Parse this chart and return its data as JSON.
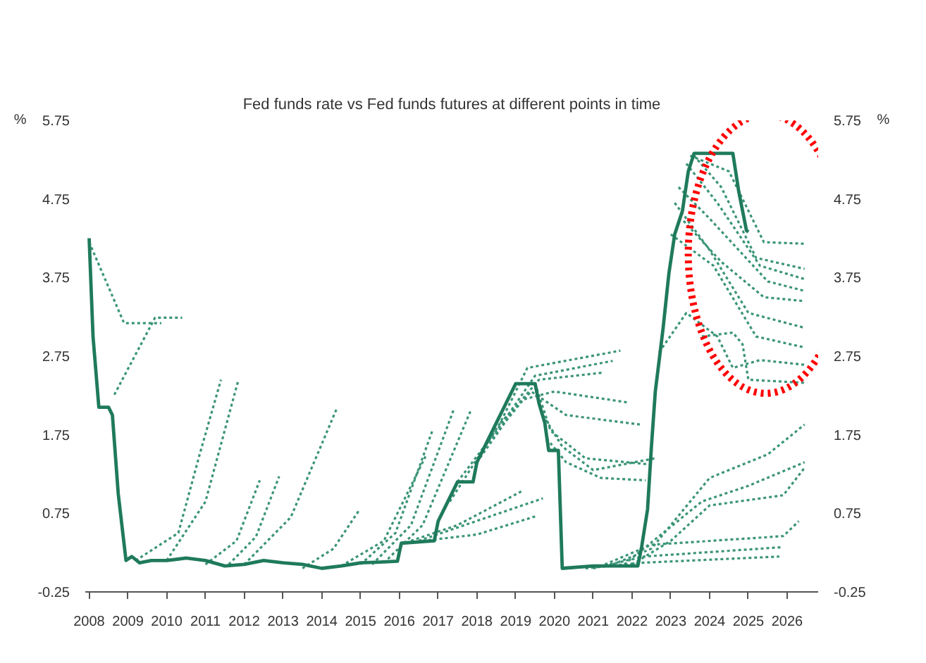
{
  "chart_data": {
    "type": "line",
    "title": "Fed funds rate vs Fed funds futures at different points in time",
    "ylabel": "%",
    "y2label": "%",
    "xlim": [
      2007.9,
      2026.8
    ],
    "xticks": [
      2008,
      2009,
      2010,
      2011,
      2012,
      2013,
      2014,
      2015,
      2016,
      2017,
      2018,
      2019,
      2020,
      2021,
      2022,
      2023,
      2024,
      2025,
      2026
    ],
    "ylim": [
      -0.25,
      5.75
    ],
    "yticks": [
      -0.25,
      0.75,
      1.75,
      2.75,
      3.75,
      4.75,
      5.75
    ],
    "y2lim": [
      -0.25,
      5.75
    ],
    "y2ticks": [
      -0.25,
      0.75,
      1.75,
      2.75,
      3.75,
      4.75,
      5.75
    ],
    "grid": false,
    "marker": "none",
    "series": [
      {
        "color": "#1f7a5c",
        "line_style": "solid",
        "x": [
          2008.0,
          2008.1,
          2008.25,
          2008.5,
          2008.6,
          2008.75,
          2008.95,
          2009.1,
          2009.3,
          2009.6,
          2010.0,
          2010.5,
          2011.0,
          2011.5,
          2012.0,
          2012.5,
          2013.0,
          2013.5,
          2014.0,
          2014.5,
          2015.0,
          2015.5,
          2015.95,
          2016.05,
          2016.9,
          2017.0,
          2017.25,
          2017.5,
          2017.9,
          2018.0,
          2018.25,
          2018.5,
          2018.75,
          2019.0,
          2019.5,
          2019.6,
          2019.75,
          2019.85,
          2020.1,
          2020.2,
          2021.0,
          2022.15,
          2022.25,
          2022.4,
          2022.5,
          2022.6,
          2022.8,
          2022.95,
          2023.1,
          2023.3,
          2023.45,
          2023.6,
          2024.6,
          2024.75,
          2024.85,
          2024.95,
          2025.0
        ],
        "values": [
          4.25,
          3.0,
          2.1,
          2.1,
          2.0,
          1.0,
          0.15,
          0.2,
          0.12,
          0.15,
          0.15,
          0.18,
          0.15,
          0.08,
          0.1,
          0.15,
          0.12,
          0.1,
          0.05,
          0.08,
          0.12,
          0.13,
          0.14,
          0.37,
          0.4,
          0.65,
          0.9,
          1.15,
          1.15,
          1.4,
          1.65,
          1.9,
          2.15,
          2.4,
          2.4,
          2.15,
          1.9,
          1.55,
          1.55,
          0.05,
          0.08,
          0.08,
          0.33,
          0.8,
          1.6,
          2.3,
          3.1,
          3.8,
          4.3,
          4.6,
          5.1,
          5.33,
          5.33,
          4.85,
          4.6,
          4.35,
          4.33
        ]
      },
      {
        "color": "#3a9478",
        "line_style": "dotted",
        "x": [
          2008.0,
          2008.9,
          2009.86
        ],
        "values": [
          4.2,
          3.17,
          3.17
        ]
      },
      {
        "color": "#3a9478",
        "line_style": "dotted",
        "x": [
          2008.65,
          2009.7,
          2010.4
        ],
        "values": [
          2.26,
          3.24,
          3.24
        ]
      },
      {
        "color": "#3a9478",
        "line_style": "dotted",
        "x": [
          2009.2,
          2010.3,
          2010.85,
          2011.4
        ],
        "values": [
          0.15,
          0.5,
          1.5,
          2.45
        ]
      },
      {
        "color": "#3a9478",
        "line_style": "dotted",
        "x": [
          2010.0,
          2011.0,
          2011.85
        ],
        "values": [
          0.15,
          0.9,
          2.45
        ]
      },
      {
        "color": "#3a9478",
        "line_style": "dotted",
        "x": [
          2011.0,
          2011.8,
          2012.4
        ],
        "values": [
          0.1,
          0.4,
          1.17
        ]
      },
      {
        "color": "#3a9478",
        "line_style": "dotted",
        "x": [
          2011.6,
          2012.3,
          2012.9
        ],
        "values": [
          0.1,
          0.45,
          1.22
        ]
      },
      {
        "color": "#3a9478",
        "line_style": "dotted",
        "x": [
          2012.0,
          2013.2,
          2014.4
        ],
        "values": [
          0.1,
          0.7,
          2.1
        ]
      },
      {
        "color": "#3a9478",
        "line_style": "dotted",
        "x": [
          2013.5,
          2014.3,
          2014.95
        ],
        "values": [
          0.05,
          0.3,
          0.78
        ]
      },
      {
        "color": "#3a9478",
        "line_style": "dotted",
        "x": [
          2014.5,
          2015.6,
          2016.7
        ],
        "values": [
          0.08,
          0.4,
          1.5
        ]
      },
      {
        "color": "#3a9478",
        "line_style": "dotted",
        "x": [
          2015.0,
          2015.9,
          2016.85
        ],
        "values": [
          0.1,
          0.5,
          1.8
        ]
      },
      {
        "color": "#3a9478",
        "line_style": "dotted",
        "x": [
          2015.3,
          2016.3,
          2017.4
        ],
        "values": [
          0.1,
          0.6,
          2.07
        ]
      },
      {
        "color": "#3a9478",
        "line_style": "dotted",
        "x": [
          2015.6,
          2016.6,
          2017.85
        ],
        "values": [
          0.12,
          0.6,
          2.07
        ]
      },
      {
        "color": "#3a9478",
        "line_style": "dotted",
        "x": [
          2016.3,
          2017.5,
          2019.15
        ],
        "values": [
          0.4,
          0.6,
          1.03
        ]
      },
      {
        "color": "#3a9478",
        "line_style": "dotted",
        "x": [
          2016.5,
          2017.8,
          2019.7
        ],
        "values": [
          0.4,
          0.62,
          0.94
        ]
      },
      {
        "color": "#3a9478",
        "line_style": "dotted",
        "x": [
          2016.6,
          2018.0,
          2019.5
        ],
        "values": [
          0.4,
          0.48,
          0.71
        ]
      },
      {
        "color": "#3a9478",
        "line_style": "dotted",
        "x": [
          2017.3,
          2018.6,
          2019.3,
          2021.7
        ],
        "values": [
          0.9,
          1.9,
          2.6,
          2.82
        ]
      },
      {
        "color": "#3a9478",
        "line_style": "dotted",
        "x": [
          2017.5,
          2018.8,
          2019.5,
          2021.5
        ],
        "values": [
          1.15,
          2.0,
          2.5,
          2.69
        ]
      },
      {
        "color": "#3a9478",
        "line_style": "dotted",
        "x": [
          2018.0,
          2019.0,
          2019.6,
          2021.25
        ],
        "values": [
          1.4,
          2.1,
          2.45,
          2.54
        ]
      },
      {
        "color": "#3a9478",
        "line_style": "dotted",
        "x": [
          2018.3,
          2019.2,
          2020.0,
          2021.9
        ],
        "values": [
          1.65,
          2.2,
          2.3,
          2.16
        ]
      },
      {
        "color": "#3a9478",
        "line_style": "dotted",
        "x": [
          2018.6,
          2019.4,
          2020.3,
          2022.2
        ],
        "values": [
          1.9,
          2.3,
          2.0,
          1.88
        ]
      },
      {
        "color": "#3a9478",
        "line_style": "dotted",
        "x": [
          2019.5,
          2019.9,
          2020.8,
          2022.5
        ],
        "values": [
          2.4,
          1.8,
          1.45,
          1.37
        ]
      },
      {
        "color": "#3a9478",
        "line_style": "dotted",
        "x": [
          2019.7,
          2020.2,
          2021.0,
          2022.6
        ],
        "values": [
          2.0,
          1.6,
          1.3,
          1.45
        ]
      },
      {
        "color": "#3a9478",
        "line_style": "dotted",
        "x": [
          2019.8,
          2020.3,
          2021.2,
          2022.35
        ],
        "values": [
          1.7,
          1.4,
          1.2,
          1.17
        ]
      },
      {
        "color": "#3a9478",
        "line_style": "dotted",
        "x": [
          2021.5,
          2022.5,
          2024.0,
          2025.5,
          2026.45
        ],
        "values": [
          0.1,
          0.3,
          1.2,
          1.5,
          1.88
        ]
      },
      {
        "color": "#3a9478",
        "line_style": "dotted",
        "x": [
          2021.8,
          2022.8,
          2023.8,
          2025.0,
          2026.45
        ],
        "values": [
          0.1,
          0.5,
          0.9,
          1.1,
          1.4
        ]
      },
      {
        "color": "#3a9478",
        "line_style": "dotted",
        "x": [
          2022.0,
          2023.0,
          2024.0,
          2025.9,
          2026.45
        ],
        "values": [
          0.1,
          0.4,
          0.85,
          0.98,
          1.33
        ]
      },
      {
        "color": "#3a9478",
        "line_style": "dotted",
        "x": [
          2021.3,
          2022.5,
          2025.9,
          2026.3
        ],
        "values": [
          0.1,
          0.35,
          0.46,
          0.65
        ]
      },
      {
        "color": "#3a9478",
        "line_style": "dotted",
        "x": [
          2021.0,
          2022.3,
          2025.9
        ],
        "values": [
          0.05,
          0.2,
          0.32
        ]
      },
      {
        "color": "#3a9478",
        "line_style": "dotted",
        "x": [
          2020.8,
          2022.2,
          2025.8
        ],
        "values": [
          0.05,
          0.12,
          0.2
        ]
      },
      {
        "color": "#3a9478",
        "line_style": "dotted",
        "x": [
          2023.5,
          2024.5,
          2025.4,
          2026.45
        ],
        "values": [
          5.3,
          5.1,
          4.2,
          4.18
        ]
      },
      {
        "color": "#3a9478",
        "line_style": "dotted",
        "x": [
          2023.6,
          2024.3,
          2025.2,
          2026.45
        ],
        "values": [
          5.3,
          4.9,
          4.0,
          3.86
        ]
      },
      {
        "color": "#3a9478",
        "line_style": "dotted",
        "x": [
          2023.4,
          2024.2,
          2025.3,
          2026.45
        ],
        "values": [
          5.2,
          4.7,
          3.9,
          3.73
        ]
      },
      {
        "color": "#3a9478",
        "line_style": "dotted",
        "x": [
          2023.2,
          2024.0,
          2025.5,
          2026.45
        ],
        "values": [
          4.9,
          4.5,
          3.7,
          3.58
        ]
      },
      {
        "color": "#3a9478",
        "line_style": "dotted",
        "x": [
          2023.33,
          2024.3,
          2025.4,
          2026.45
        ],
        "values": [
          4.47,
          3.95,
          3.5,
          3.45
        ]
      },
      {
        "color": "#3a9478",
        "line_style": "dotted",
        "x": [
          2023.1,
          2024.0,
          2025.0,
          2026.45
        ],
        "values": [
          4.7,
          4.1,
          3.3,
          3.11
        ]
      },
      {
        "color": "#3a9478",
        "line_style": "dotted",
        "x": [
          2023.0,
          2024.1,
          2025.2,
          2026.45
        ],
        "values": [
          4.3,
          3.9,
          3.0,
          2.86
        ]
      },
      {
        "color": "#3a9478",
        "line_style": "dotted",
        "x": [
          2022.7,
          2023.4,
          2024.2,
          2024.6,
          2025.3,
          2026.45
        ],
        "values": [
          2.8,
          3.3,
          3.0,
          2.6,
          2.7,
          2.64
        ]
      },
      {
        "color": "#3a9478",
        "line_style": "dotted",
        "x": [
          2023.8,
          2024.6,
          2024.85,
          2025.0,
          2026.45
        ],
        "values": [
          3.0,
          3.05,
          2.9,
          2.45,
          2.41
        ]
      }
    ]
  }
}
